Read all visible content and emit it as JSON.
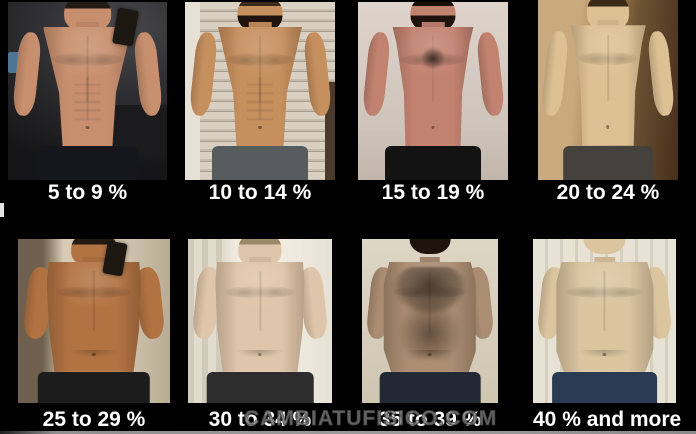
{
  "watermark": {
    "text": "CAMBIATUFISICO.COM",
    "color": "#9e9e9e"
  },
  "footer": {
    "line_color": "#8f8f8f"
  },
  "categories": [
    {
      "label": "5 to 9 %",
      "photo": "lean-muscular-man-mirror-selfie-dark-bathroom",
      "colors": {
        "skin": "#c78f6e",
        "pants": "#15171d",
        "hair": "#241a14",
        "bg": "#2b2a2d"
      }
    },
    {
      "label": "10 to 14 %",
      "photo": "muscular-man-front-pose-slat-wall",
      "colors": {
        "skin": "#c68f5e",
        "pants": "#565b5e",
        "hair": "#3a2c1c",
        "bg": "#cfc6b8"
      }
    },
    {
      "label": "15 to 19 %",
      "photo": "bearded-man-reddish-skin-chest-hair",
      "colors": {
        "skin": "#c28270",
        "pants": "#131313",
        "hair": "#17100a",
        "bg": "#d2c7bd"
      }
    },
    {
      "label": "20 to 24 %",
      "photo": "young-man-soft-torso-warm-room",
      "colors": {
        "skin": "#ddc094",
        "pants": "#45423e",
        "hair": "#3c2a18",
        "bg": "#97severe"
      }
    },
    {
      "label": "25 to 29 %",
      "photo": "tan-heavyset-man-mirror-selfie",
      "colors": {
        "skin": "#b27343",
        "pants": "#1c1c1c",
        "hair": "#241a12",
        "bg": "#cfc3ad"
      }
    },
    {
      "label": "30 to 34 %",
      "photo": "heavy-man-pale-skin-white-room",
      "colors": {
        "skin": "#dfc5a9",
        "pants": "#2d2d2d",
        "hair": "#9b8968",
        "bg": "#efeae0"
      }
    },
    {
      "label": "35 to 39 %",
      "photo": "obese-man-very-hairy-torso",
      "colors": {
        "skin": "#ab8d72",
        "pants": "#222834",
        "hair": "#1c130c",
        "bg": "#d5ccb9"
      }
    },
    {
      "label": "40 % and more",
      "photo": "obese-man-pale-skin-vertical-blinds",
      "colors": {
        "skin": "#dac59f",
        "pants": "#2b3b54",
        "hair": "#4a3322",
        "bg": "#ddd8c9"
      }
    }
  ]
}
